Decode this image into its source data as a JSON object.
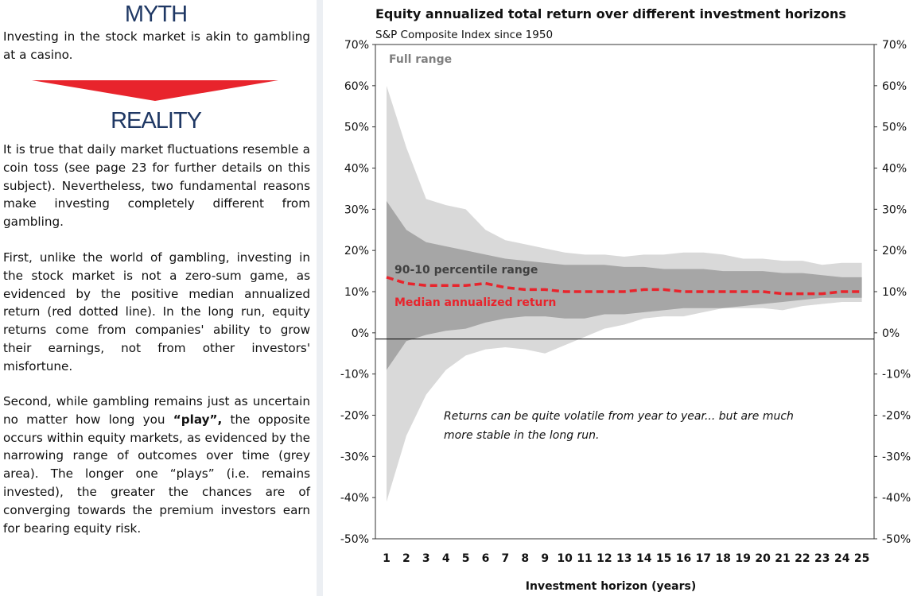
{
  "left": {
    "myth_heading": "MYTH",
    "myth_text": "Investing in the stock market is akin to gambling at a casino.",
    "reality_heading": "REALITY",
    "p1": "It is true that daily market fluctuations resemble a coin toss (see page 23 for further details on this subject). Nevertheless, two fundamental reasons make investing completely different from gambling.",
    "p2": "First, unlike the world of gambling, investing in the stock market is not a zero-sum game, as evidenced by the positive median annualized return (red dotted line). In the long run, equity returns come from companies' ability to grow their earnings, not from other investors' misfortune.",
    "p3_before": "Second, while gambling remains just as uncertain no matter how long you ",
    "p3_bold": "“play”,",
    "p3_after": " the opposite occurs within equity markets, as evidenced by the narrowing range of outcomes over time (grey area). The longer one “plays” (i.e. remains invested), the greater the chances are of converging towards the premium investors earn for bearing equity risk.",
    "arrow_color": "#e8242c",
    "heading_color": "#1f3864"
  },
  "chart_data": {
    "type": "area",
    "title": "Equity annualized total return over different investment horizons",
    "subtitle": "S&P Composite Index since 1950",
    "xlabel": "Investment horizon (years)",
    "x": [
      1,
      2,
      3,
      4,
      5,
      6,
      7,
      8,
      9,
      10,
      11,
      12,
      13,
      14,
      15,
      16,
      17,
      18,
      19,
      20,
      21,
      22,
      23,
      24,
      25
    ],
    "ylim": [
      -50,
      70
    ],
    "yticks": [
      70,
      60,
      50,
      40,
      30,
      20,
      10,
      0,
      -10,
      -20,
      -30,
      -40,
      -50
    ],
    "ytick_labels": [
      "70%",
      "60%",
      "50%",
      "40%",
      "30%",
      "20%",
      "10%",
      "0%",
      "-10%",
      "-20%",
      "-30%",
      "-40%",
      "-50%"
    ],
    "series": [
      {
        "name": "Full range",
        "color": "#d9d9d9",
        "upper": [
          60,
          45,
          32.5,
          31,
          30,
          25,
          22.5,
          21.5,
          20.5,
          19.5,
          19,
          19,
          18.5,
          19,
          19,
          19.5,
          19.5,
          19,
          18,
          18,
          17.5,
          17.5,
          16.5,
          17,
          17
        ],
        "lower": [
          -41,
          -25,
          -15,
          -9,
          -5.5,
          -4,
          -3.5,
          -4,
          -5,
          -3,
          -1,
          1,
          2,
          3.5,
          4,
          4,
          5,
          6,
          6,
          6,
          5.5,
          6.5,
          7,
          7.5,
          7.5
        ]
      },
      {
        "name": "90-10 percentile range",
        "color": "#a6a6a6",
        "upper": [
          32,
          25,
          22,
          21,
          20,
          19,
          18,
          17.5,
          17,
          16.5,
          16.5,
          16.5,
          16,
          16,
          15.5,
          15.5,
          15.5,
          15,
          15,
          15,
          14.5,
          14.5,
          14,
          13.5,
          13.5
        ],
        "lower": [
          -9,
          -2,
          -0.5,
          0.5,
          1,
          2.5,
          3.5,
          4,
          4,
          3.5,
          3.5,
          4.5,
          4.5,
          5,
          5.5,
          6,
          6,
          6,
          6.5,
          7,
          7.5,
          8,
          8.5,
          8.5,
          8.5
        ]
      },
      {
        "name": "Median annualized return",
        "color": "#e8242c",
        "values": [
          13.5,
          12,
          11.5,
          11.5,
          11.5,
          12,
          11,
          10.5,
          10.5,
          10,
          10,
          10,
          10,
          10.5,
          10.5,
          10,
          10,
          10,
          10,
          10,
          9.5,
          9.5,
          9.5,
          10,
          10
        ]
      }
    ],
    "annotation_line1": "Returns can be quite volatile from year to year... but are much",
    "annotation_line2": "more stable in the long run."
  }
}
